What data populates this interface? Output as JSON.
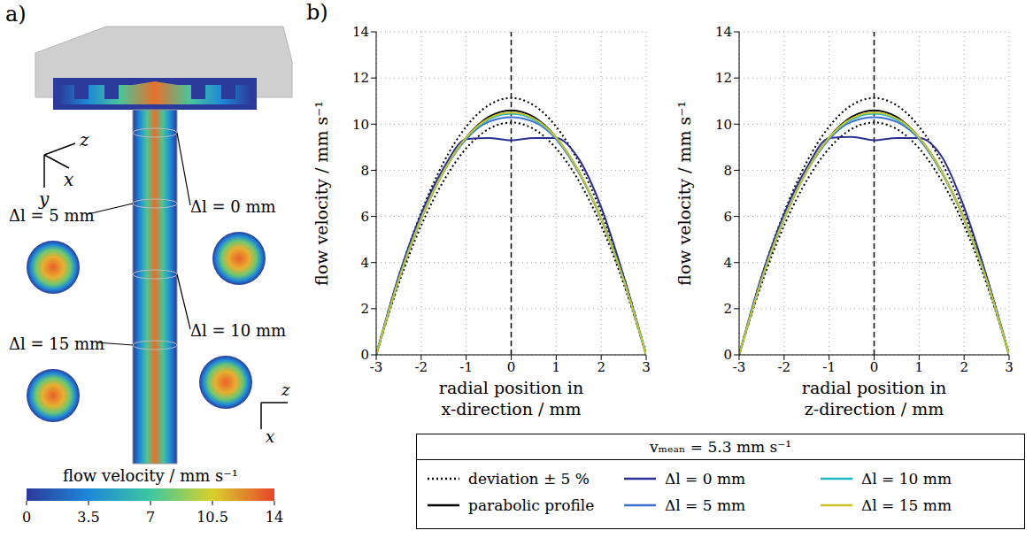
{
  "panel_a": {
    "letter": "a)",
    "cross_sections": [
      "Δl = 0 mm",
      "Δl = 5 mm",
      "Δl = 10 mm",
      "Δl = 15 mm"
    ],
    "axes_3d": [
      "z",
      "x",
      "y"
    ],
    "axes_2d": [
      "z",
      "x"
    ],
    "colorbar": {
      "label": "flow velocity / mm s⁻¹",
      "range": [
        0,
        14
      ],
      "ticks": [
        0,
        3.5,
        7,
        10.5,
        14
      ]
    }
  },
  "panel_b": {
    "letter": "b)",
    "legend_title": "vₘₑₐₙ = 5.3 mm s⁻¹"
  },
  "chart_data": [
    {
      "type": "line",
      "x_label": "radial position in x-direction / mm",
      "y_label": "flow velocity / mm s⁻¹",
      "x": [
        -3,
        -2.5,
        -2,
        -1.5,
        -1,
        -0.5,
        0,
        0.5,
        1,
        1.5,
        2,
        2.5,
        3
      ],
      "xlim": [
        -3,
        3
      ],
      "xticks": [
        -3,
        -2,
        -1,
        0,
        1,
        2,
        3
      ],
      "ylim": [
        0,
        14
      ],
      "yticks": [
        0,
        2,
        4,
        6,
        8,
        10,
        12,
        14
      ],
      "grid": true,
      "vline": 0,
      "series": [
        {
          "name": "deviation ± 5 %",
          "color": "#000000",
          "line_style": "dotted",
          "values": [
            0,
            3.4,
            6.18,
            8.35,
            9.89,
            10.82,
            11.13,
            10.82,
            9.89,
            8.35,
            6.18,
            3.4,
            0
          ]
        },
        {
          "name": "deviation ± 5 %",
          "color": "#000000",
          "line_style": "dotted",
          "values": [
            0,
            3.08,
            5.6,
            7.55,
            8.95,
            9.79,
            10.07,
            9.79,
            8.95,
            7.55,
            5.6,
            3.08,
            0
          ]
        },
        {
          "name": "parabolic profile",
          "color": "#000000",
          "line_style": "solid",
          "values": [
            0,
            3.24,
            5.89,
            7.95,
            9.42,
            10.31,
            10.6,
            10.31,
            9.42,
            7.95,
            5.89,
            3.24,
            0
          ]
        },
        {
          "name": "Δl = 0 mm",
          "color": "#2b2f8f",
          "line_style": "solid",
          "values": [
            0,
            3.4,
            6.1,
            8.1,
            9.35,
            9.4,
            9.3,
            9.4,
            9.4,
            8.5,
            6.4,
            3.4,
            0
          ]
        },
        {
          "name": "Δl = 5 mm",
          "color": "#3b6fd1",
          "line_style": "solid",
          "values": [
            0,
            3.3,
            5.95,
            7.95,
            9.35,
            10.1,
            10.3,
            10.1,
            9.35,
            7.9,
            5.9,
            3.25,
            0
          ]
        },
        {
          "name": "Δl = 10 mm",
          "color": "#20b7c7",
          "line_style": "solid",
          "values": [
            0,
            3.25,
            5.9,
            7.95,
            9.4,
            10.2,
            10.45,
            10.2,
            9.4,
            7.95,
            5.9,
            3.25,
            0
          ]
        },
        {
          "name": "Δl = 15 mm",
          "color": "#c8c42a",
          "line_style": "solid",
          "values": [
            0,
            3.25,
            5.9,
            7.95,
            9.42,
            10.25,
            10.5,
            10.25,
            9.42,
            7.95,
            5.9,
            3.25,
            0
          ]
        }
      ]
    },
    {
      "type": "line",
      "x_label": "radial position in z-direction / mm",
      "y_label": "flow velocity / mm s⁻¹",
      "x": [
        -3,
        -2.5,
        -2,
        -1.5,
        -1,
        -0.5,
        0,
        0.5,
        1,
        1.5,
        2,
        2.5,
        3
      ],
      "xlim": [
        -3,
        3
      ],
      "xticks": [
        -3,
        -2,
        -1,
        0,
        1,
        2,
        3
      ],
      "ylim": [
        0,
        14
      ],
      "yticks": [
        0,
        2,
        4,
        6,
        8,
        10,
        12,
        14
      ],
      "grid": true,
      "vline": 0,
      "series": [
        {
          "name": "deviation ± 5 %",
          "color": "#000000",
          "line_style": "dotted",
          "values": [
            0,
            3.4,
            6.18,
            8.35,
            9.89,
            10.82,
            11.13,
            10.82,
            9.89,
            8.35,
            6.18,
            3.4,
            0
          ]
        },
        {
          "name": "deviation ± 5 %",
          "color": "#000000",
          "line_style": "dotted",
          "values": [
            0,
            3.08,
            5.6,
            7.55,
            8.95,
            9.79,
            10.07,
            9.79,
            8.95,
            7.55,
            5.6,
            3.08,
            0
          ]
        },
        {
          "name": "parabolic profile",
          "color": "#000000",
          "line_style": "solid",
          "values": [
            0,
            3.24,
            5.89,
            7.95,
            9.42,
            10.31,
            10.6,
            10.31,
            9.42,
            7.95,
            5.89,
            3.24,
            0
          ]
        },
        {
          "name": "Δl = 0 mm",
          "color": "#2b2f8f",
          "line_style": "solid",
          "values": [
            0,
            3.4,
            6.1,
            8.1,
            9.4,
            9.45,
            9.3,
            9.4,
            9.4,
            8.6,
            6.4,
            3.4,
            0
          ]
        },
        {
          "name": "Δl = 5 mm",
          "color": "#3b6fd1",
          "line_style": "solid",
          "values": [
            0,
            3.3,
            5.95,
            7.95,
            9.35,
            10.1,
            10.3,
            10.1,
            9.35,
            7.9,
            5.9,
            3.25,
            0
          ]
        },
        {
          "name": "Δl = 10 mm",
          "color": "#20b7c7",
          "line_style": "solid",
          "values": [
            0,
            3.25,
            5.9,
            7.95,
            9.4,
            10.2,
            10.45,
            10.2,
            9.4,
            7.95,
            5.9,
            3.25,
            0
          ]
        },
        {
          "name": "Δl = 15 mm",
          "color": "#c8c42a",
          "line_style": "solid",
          "values": [
            0,
            3.25,
            5.9,
            7.95,
            9.42,
            10.25,
            10.5,
            10.25,
            9.42,
            7.95,
            5.9,
            3.25,
            0
          ]
        }
      ]
    }
  ]
}
